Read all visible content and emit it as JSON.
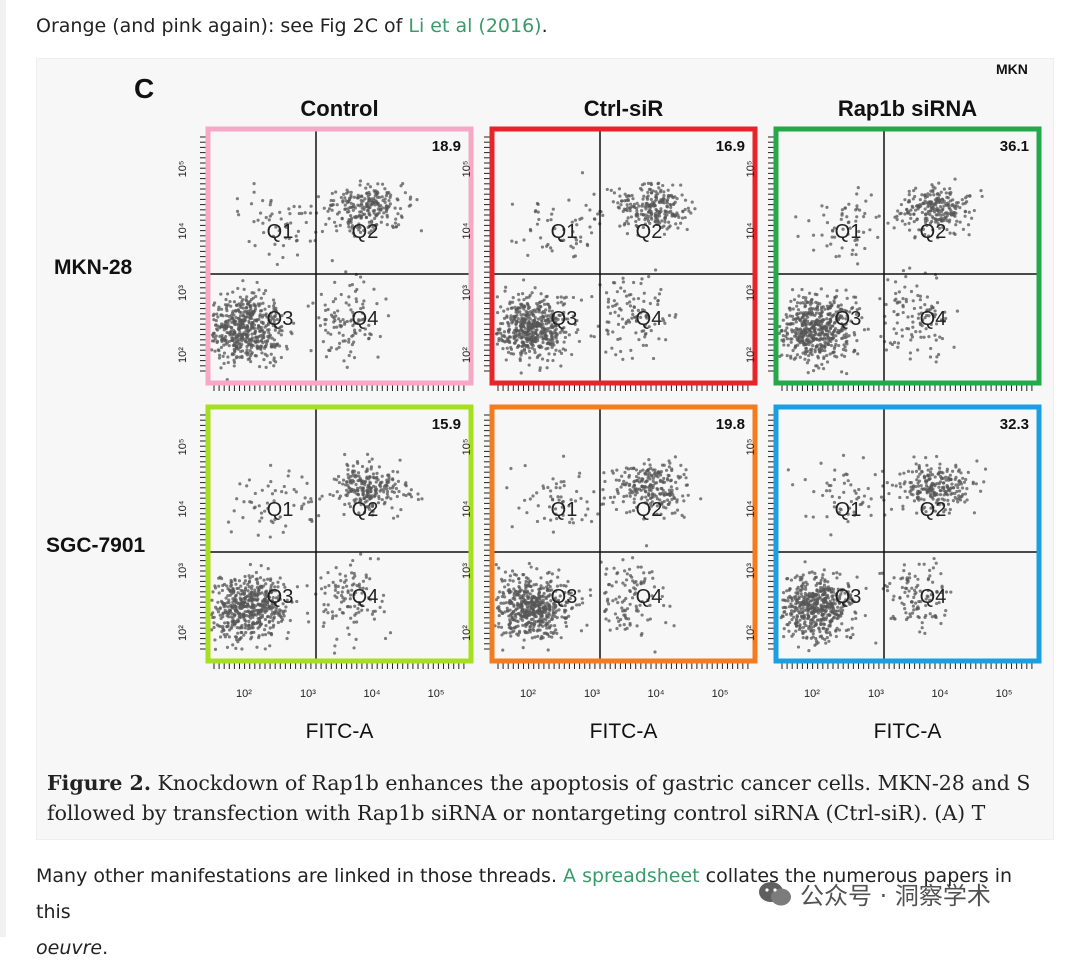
{
  "text": {
    "p1_before": "Orange (and pink again): see Fig 2C of ",
    "p1_link": "Li et al (2016)",
    "p1_after": ".",
    "p2_before": "Many other manifestations are linked in those threads. ",
    "p2_link": "A spreadsheet",
    "p2_after": " collates the numerous papers in this",
    "p2_em": "oeuvre",
    "p2_end": "."
  },
  "figure": {
    "panel_letter": "C",
    "corner_clip": "MKN",
    "columns": [
      "Control",
      "Ctrl-siR",
      "Rap1b siRNA"
    ],
    "rows": [
      "MKN-28",
      "SGC-7901"
    ],
    "x_axis_label": "FITC-A",
    "x_ticks": [
      "10²",
      "10³",
      "10⁴",
      "10⁵"
    ],
    "y_ticks": [
      "10²",
      "10³",
      "10⁴",
      "10⁵"
    ],
    "quadrants": [
      "Q1",
      "Q2",
      "Q3",
      "Q4"
    ],
    "panels": [
      {
        "value": "18.9",
        "color": "#f7a8c4"
      },
      {
        "value": "16.9",
        "color": "#e8232a"
      },
      {
        "value": "36.1",
        "color": "#23a84a"
      },
      {
        "value": "15.9",
        "color": "#a6df1f"
      },
      {
        "value": "19.8",
        "color": "#f47b20"
      },
      {
        "value": "32.3",
        "color": "#1a9fe0"
      }
    ]
  },
  "caption": {
    "label": "Figure 2.",
    "line1": " Knockdown of Rap1b enhances the apoptosis of gastric cancer cells. MKN-28 and S",
    "line2": "followed by transfection with Rap1b siRNA or nontargeting control siRNA (Ctrl-siR). (A) T"
  },
  "watermark": "公众号 · 洞察学术",
  "colors": {
    "link": "#3a9a6a"
  }
}
